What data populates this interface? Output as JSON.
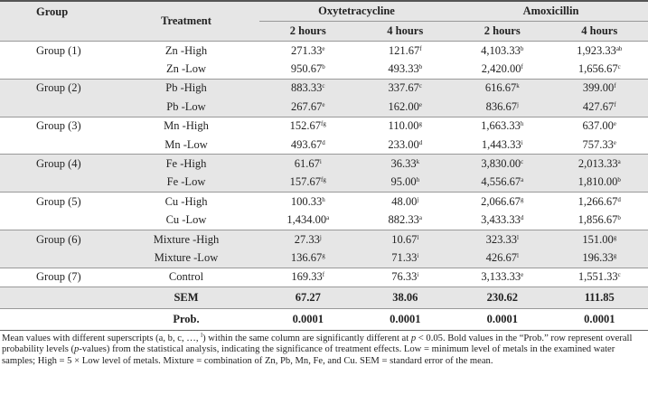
{
  "table": {
    "header": {
      "group": "Group",
      "treatment": "Treatment",
      "drugs": [
        "Oxytetracycline",
        "Amoxicillin"
      ],
      "times": [
        "2 hours",
        "4 hours",
        "2 hours",
        "4 hours"
      ]
    },
    "groups": [
      {
        "label": "Group (1)",
        "rows": [
          {
            "treatment": "Zn -High",
            "cells": [
              [
                "271.33",
                "e"
              ],
              [
                "121.67",
                "f"
              ],
              [
                "4,103.33",
                "b"
              ],
              [
                "1,923.33",
                "ab"
              ]
            ]
          },
          {
            "treatment": "Zn -Low",
            "cells": [
              [
                "950.67",
                "b"
              ],
              [
                "493.33",
                "b"
              ],
              [
                "2,420.00",
                "f"
              ],
              [
                "1,656.67",
                "c"
              ]
            ]
          }
        ]
      },
      {
        "label": "Group (2)",
        "rows": [
          {
            "treatment": "Pb -High",
            "cells": [
              [
                "883.33",
                "c"
              ],
              [
                "337.67",
                "c"
              ],
              [
                "616.67",
                "k"
              ],
              [
                "399.00",
                "f"
              ]
            ]
          },
          {
            "treatment": "Pb -Low",
            "cells": [
              [
                "267.67",
                "e"
              ],
              [
                "162.00",
                "e"
              ],
              [
                "836.67",
                "j"
              ],
              [
                "427.67",
                "f"
              ]
            ]
          }
        ]
      },
      {
        "label": "Group (3)",
        "rows": [
          {
            "treatment": "Mn -High",
            "cells": [
              [
                "152.67",
                "fg"
              ],
              [
                "110.00",
                "g"
              ],
              [
                "1,663.33",
                "h"
              ],
              [
                "637.00",
                "e"
              ]
            ]
          },
          {
            "treatment": "Mn -Low",
            "cells": [
              [
                "493.67",
                "d"
              ],
              [
                "233.00",
                "d"
              ],
              [
                "1,443.33",
                "i"
              ],
              [
                "757.33",
                "e"
              ]
            ]
          }
        ]
      },
      {
        "label": "Group (4)",
        "rows": [
          {
            "treatment": "Fe -High",
            "cells": [
              [
                "61.67",
                "i"
              ],
              [
                "36.33",
                "k"
              ],
              [
                "3,830.00",
                "c"
              ],
              [
                "2,013.33",
                "a"
              ]
            ]
          },
          {
            "treatment": "Fe -Low",
            "cells": [
              [
                "157.67",
                "fg"
              ],
              [
                "95.00",
                "h"
              ],
              [
                "4,556.67",
                "a"
              ],
              [
                "1,810.00",
                "b"
              ]
            ]
          }
        ]
      },
      {
        "label": "Group (5)",
        "rows": [
          {
            "treatment": "Cu -High",
            "cells": [
              [
                "100.33",
                "h"
              ],
              [
                "48.00",
                "j"
              ],
              [
                "2,066.67",
                "g"
              ],
              [
                "1,266.67",
                "d"
              ]
            ]
          },
          {
            "treatment": "Cu -Low",
            "cells": [
              [
                "1,434.00",
                "a"
              ],
              [
                "882.33",
                "a"
              ],
              [
                "3,433.33",
                "d"
              ],
              [
                "1,856.67",
                "b"
              ]
            ]
          }
        ]
      },
      {
        "label": "Group (6)",
        "rows": [
          {
            "treatment": "Mixture -High",
            "cells": [
              [
                "27.33",
                "j"
              ],
              [
                "10.67",
                "l"
              ],
              [
                "323.33",
                "l"
              ],
              [
                "151.00",
                "g"
              ]
            ]
          },
          {
            "treatment": "Mixture -Low",
            "cells": [
              [
                "136.67",
                "g"
              ],
              [
                "71.33",
                "i"
              ],
              [
                "426.67",
                "l"
              ],
              [
                "196.33",
                "g"
              ]
            ]
          }
        ]
      },
      {
        "label": "Group (7)",
        "rows": [
          {
            "treatment": "Control",
            "cells": [
              [
                "169.33",
                "f"
              ],
              [
                "76.33",
                "i"
              ],
              [
                "3,133.33",
                "e"
              ],
              [
                "1,551.33",
                "c"
              ]
            ]
          }
        ]
      }
    ],
    "sem": {
      "label": "SEM",
      "values": [
        "67.27",
        "38.06",
        "230.62",
        "111.85"
      ]
    },
    "prob": {
      "label": "Prob.",
      "values": [
        "0.0001",
        "0.0001",
        "0.0001",
        "0.0001"
      ]
    }
  },
  "footnote": [
    "Mean values with different superscripts (a, b, c, …, ",
    "l",
    ") within the same column are significantly different at ",
    "p",
    " < 0.05. Bold values in the “Prob.” row represent overall probability levels (",
    "p",
    "-values) from the statistical analysis, indicating the significance of treatment effects. Low = minimum level of metals in the examined water samples; High = 5 × Low level of metals. Mixture = combination of Zn, Pb, Mn, Fe, and Cu. SEM = standard error of the mean."
  ]
}
